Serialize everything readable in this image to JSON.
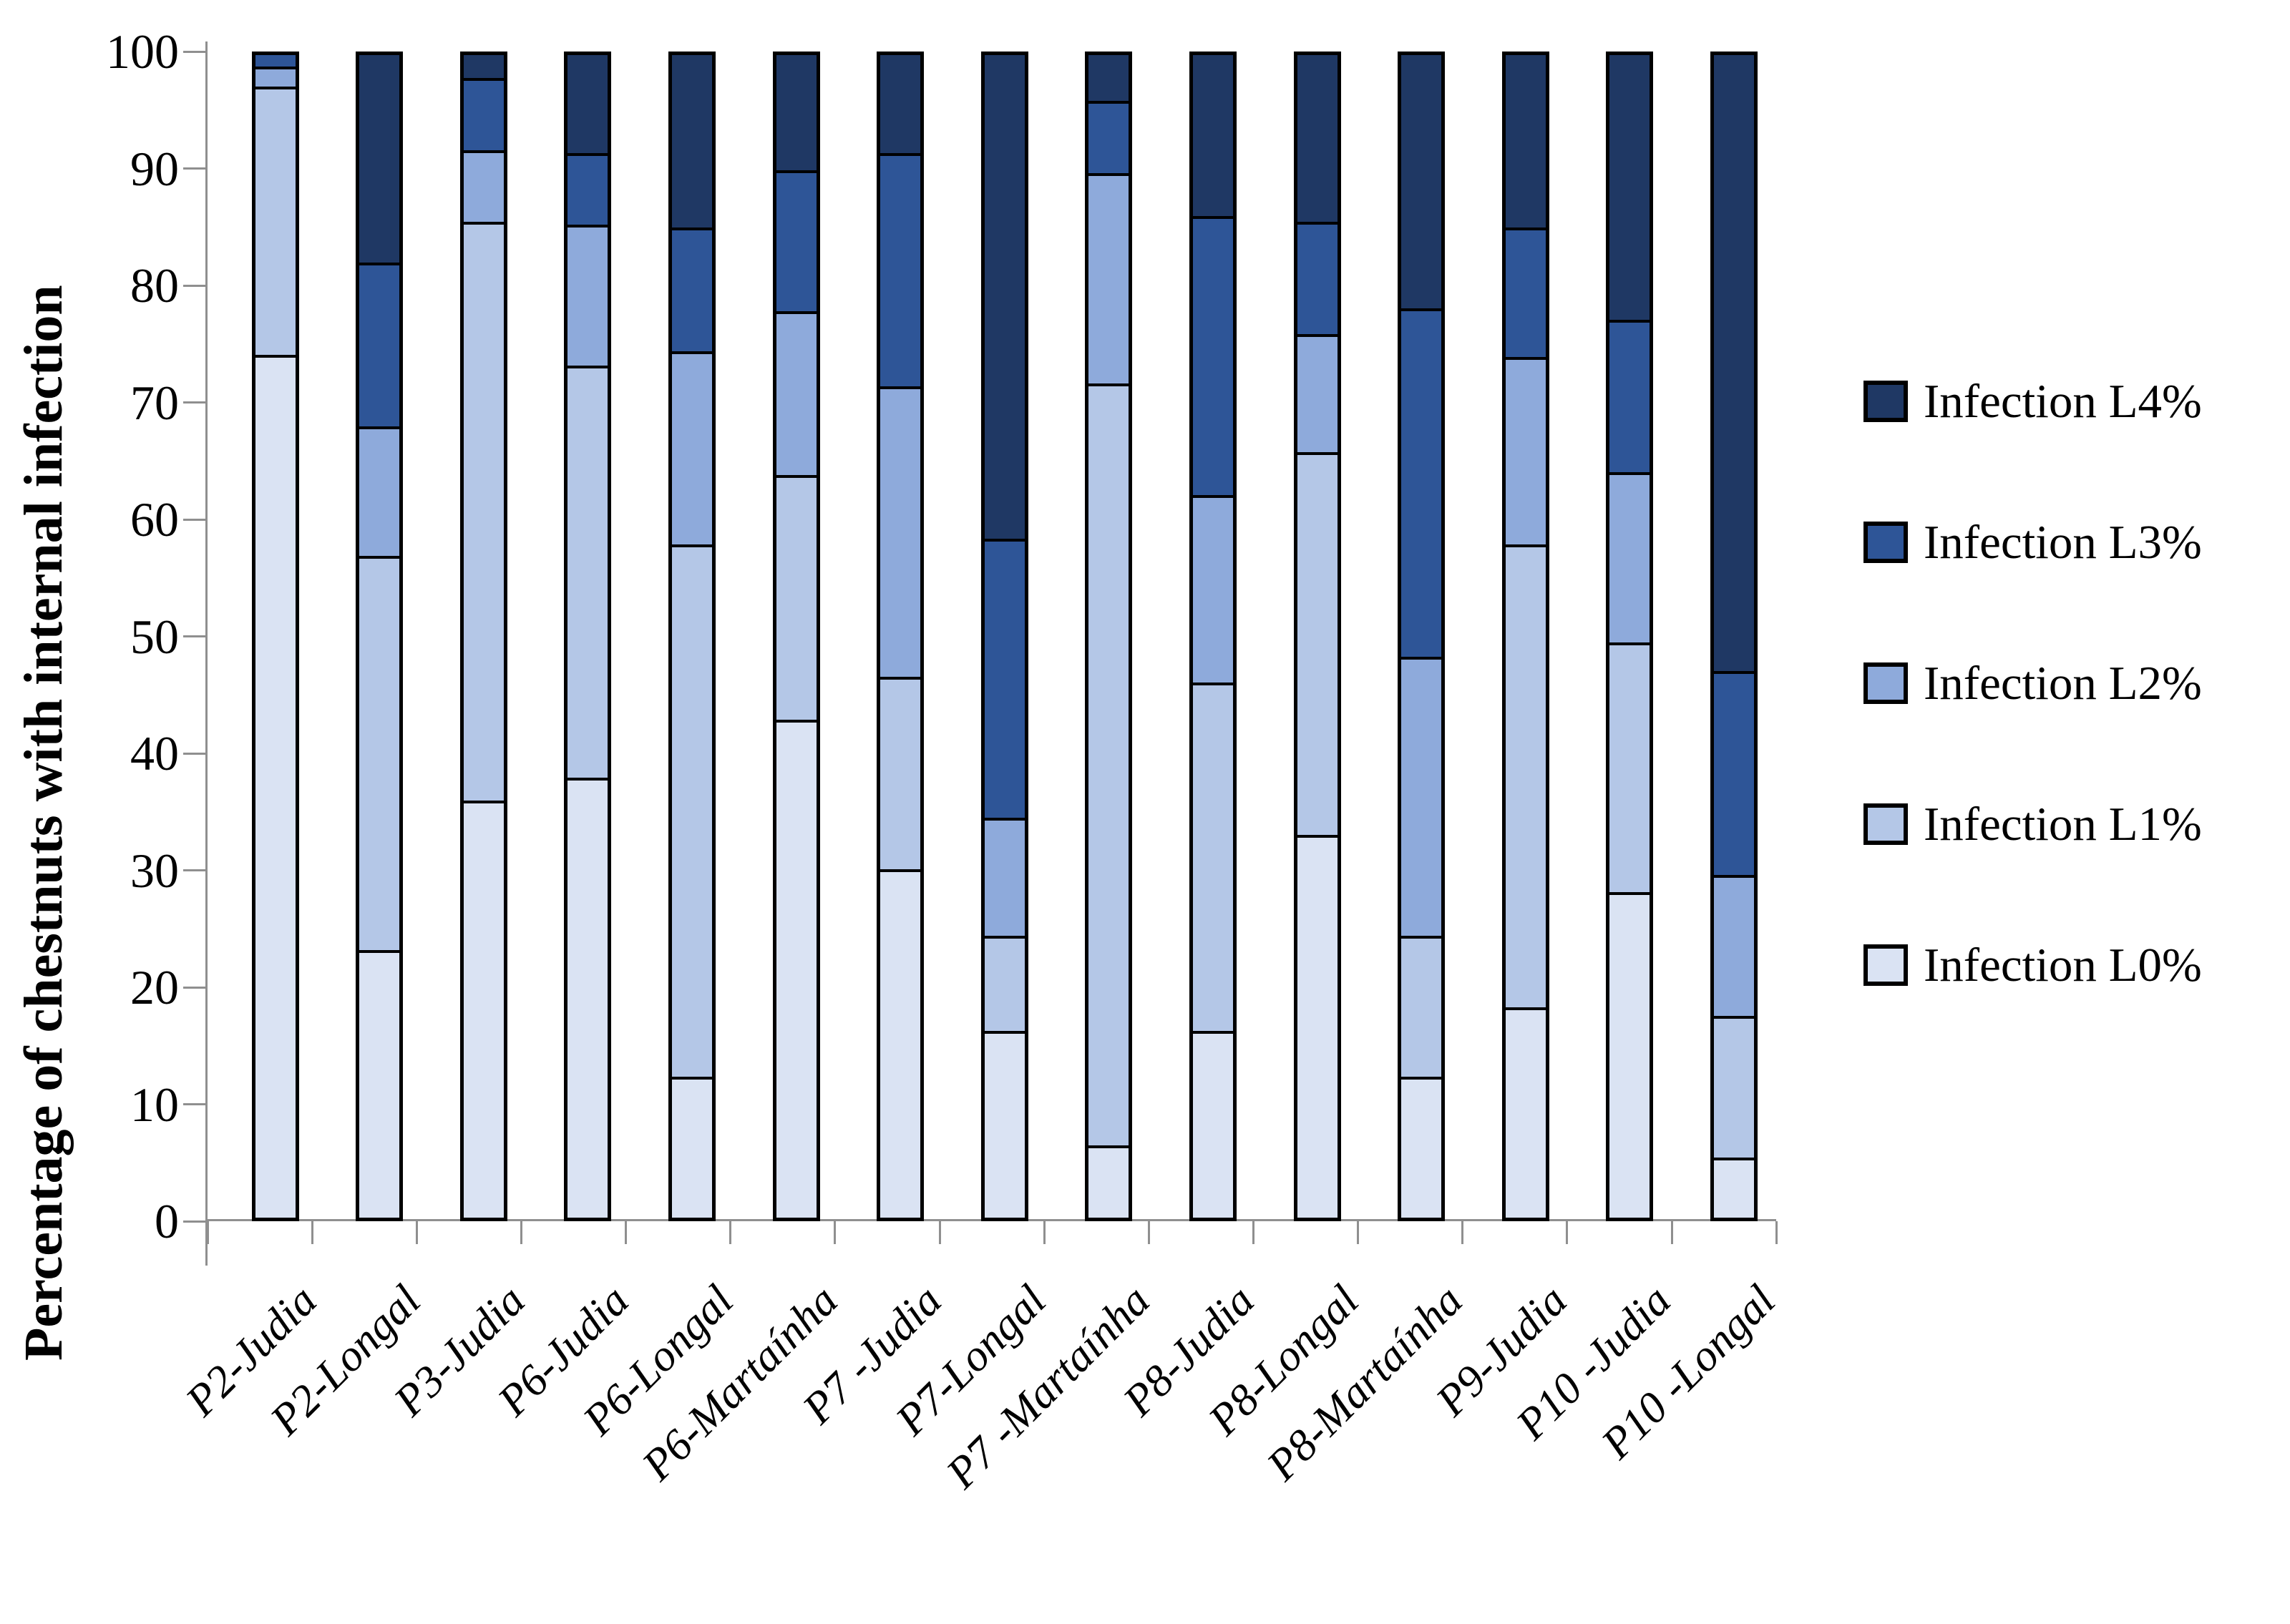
{
  "chart_data": {
    "type": "bar",
    "stacked": true,
    "orientation": "vertical",
    "title": "",
    "xlabel": "",
    "ylabel": "Percentage of chestnuts with internal infection",
    "ylim": [
      0,
      100
    ],
    "yticks": [
      0,
      10,
      20,
      30,
      40,
      50,
      60,
      70,
      80,
      90,
      100
    ],
    "grid": false,
    "legend_position": "right",
    "legend_order_top_to_bottom": [
      "Infection L4%",
      "Infection L3%",
      "Infection L2%",
      "Infection L1%",
      "Infection L0%"
    ],
    "categories": [
      "P2-Judia",
      "P2-Longal",
      "P3-Judia",
      "P6-Judia",
      "P6-Longal",
      "P6-Martaínha",
      "P7 -Judia",
      "P7-Longal",
      "P7 -Martaínha",
      "P8-Judia",
      "P8-Longal",
      "P8-Martaínha",
      "P9-Judia",
      "P10 -Judia",
      "P10 -Longal"
    ],
    "series": [
      {
        "name": "Infection L0%",
        "color": "#dae3f3",
        "values": [
          74.5,
          23,
          36,
          38,
          12,
          43,
          30,
          16,
          6,
          16,
          33,
          12,
          18,
          28,
          5
        ]
      },
      {
        "name": "Infection L1%",
        "color": "#b4c7e7",
        "values": [
          23,
          34,
          50,
          35.5,
          46,
          21,
          16.5,
          8,
          66,
          30,
          33,
          12,
          40,
          21.5,
          12
        ]
      },
      {
        "name": "Infection L2%",
        "color": "#8eaadb",
        "values": [
          1.5,
          11,
          6,
          12,
          16.5,
          14,
          25,
          10,
          18,
          16,
          10,
          24,
          16,
          14.5,
          12
        ]
      },
      {
        "name": "Infection L3%",
        "color": "#2e5597",
        "values": [
          1,
          14,
          6,
          6,
          10.5,
          12,
          20,
          24,
          6,
          24,
          9.5,
          30,
          11,
          13,
          17.5
        ]
      },
      {
        "name": "Infection L4%",
        "color": "#1f3864",
        "values": [
          0,
          18,
          2,
          8.5,
          15,
          10,
          8.5,
          42,
          4,
          14,
          14.5,
          22,
          15,
          23,
          53.5
        ]
      }
    ],
    "axis_color": "#8f8f8f",
    "bar_outline_color": "#000000"
  }
}
